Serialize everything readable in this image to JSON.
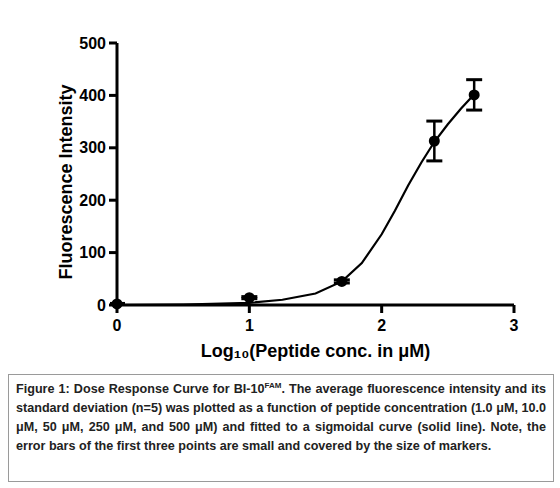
{
  "chart_data": {
    "type": "scatter",
    "y_label": "Fluorescence Intensity",
    "x_label": "Log₁₀(Peptide conc. in μM)",
    "xlim": [
      0,
      3
    ],
    "xticks": [
      0,
      1,
      2,
      3
    ],
    "ylim": [
      0,
      500
    ],
    "yticks": [
      0,
      100,
      200,
      300,
      400,
      500
    ],
    "grid": false,
    "series": [
      {
        "type": "scatter",
        "marker": "circle",
        "color": "#000000",
        "x": [
          0,
          1,
          1.699,
          2.398,
          2.699
        ],
        "values": [
          2,
          14,
          45,
          313,
          401
        ],
        "errors": [
          1,
          2,
          3,
          38,
          29
        ]
      },
      {
        "type": "line",
        "line_style": "solid",
        "color": "#000000",
        "x": [
          0,
          0.5,
          1,
          1.25,
          1.5,
          1.7,
          1.85,
          2.0,
          2.1,
          2.2,
          2.3,
          2.4,
          2.5,
          2.6,
          2.7
        ],
        "values": [
          0,
          1,
          4,
          10,
          22,
          45,
          80,
          135,
          180,
          228,
          272,
          312,
          345,
          375,
          402
        ]
      }
    ],
    "caption": {
      "label": "Figure 1:",
      "before": " Dose Response Curve for BI-10",
      "superscript": "FAM",
      "after": ". The average fluorescence intensity and its standard deviation (n=5) was plotted as a function of peptide concentration (1.0 μM, 10.0 μM, 50 μM, 250 μM, and 500 μM) and fitted to a sigmoidal curve (solid line). Note, the error bars of the first three points are small and covered by the size of markers."
    }
  }
}
